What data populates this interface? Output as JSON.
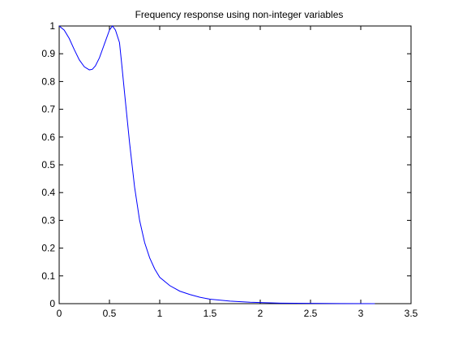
{
  "chart_data": {
    "type": "line",
    "title": "Frequency response using non-integer variables",
    "xlabel": "",
    "ylabel": "",
    "xlim": [
      0,
      3.5
    ],
    "ylim": [
      0,
      1
    ],
    "grid": false,
    "x_ticks": [
      0,
      0.5,
      1,
      1.5,
      2,
      2.5,
      3,
      3.5
    ],
    "x_tick_labels": [
      "0",
      "0.5",
      "1",
      "1.5",
      "2",
      "2.5",
      "3",
      "3.5"
    ],
    "y_ticks": [
      0,
      0.1,
      0.2,
      0.3,
      0.4,
      0.5,
      0.6,
      0.7,
      0.8,
      0.9,
      1
    ],
    "y_tick_labels": [
      "0",
      "0.1",
      "0.2",
      "0.3",
      "0.4",
      "0.5",
      "0.6",
      "0.7",
      "0.8",
      "0.9",
      "1"
    ],
    "series": [
      {
        "color": "#0000ff",
        "x": [
          0,
          0.05,
          0.1,
          0.15,
          0.2,
          0.25,
          0.3,
          0.33,
          0.36,
          0.4,
          0.45,
          0.5,
          0.53,
          0.56,
          0.6,
          0.62,
          0.65,
          0.7,
          0.75,
          0.8,
          0.85,
          0.9,
          0.95,
          1.0,
          1.1,
          1.2,
          1.3,
          1.4,
          1.5,
          1.7,
          1.9,
          2.0,
          2.2,
          2.5,
          2.8,
          3.14
        ],
        "y": [
          1.0,
          0.985,
          0.955,
          0.915,
          0.878,
          0.853,
          0.842,
          0.844,
          0.856,
          0.885,
          0.935,
          0.985,
          1.0,
          0.985,
          0.94,
          0.87,
          0.76,
          0.58,
          0.42,
          0.3,
          0.22,
          0.165,
          0.125,
          0.095,
          0.065,
          0.045,
          0.033,
          0.023,
          0.016,
          0.009,
          0.005,
          0.004,
          0.002,
          0.001,
          0.0005,
          0.0
        ]
      }
    ]
  }
}
